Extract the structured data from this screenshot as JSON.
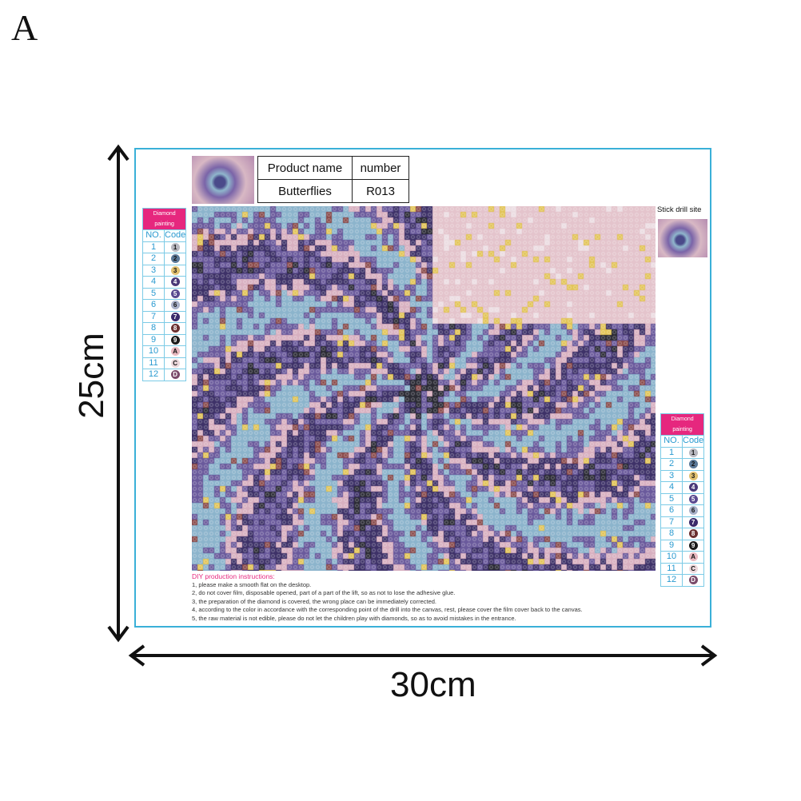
{
  "label": "A",
  "product_table": {
    "headers": [
      "Product name",
      "number"
    ],
    "values": [
      "Butterflies",
      "R013"
    ]
  },
  "stick_drill_site": "Stick drill site",
  "code_table": {
    "title": "Diamond painting",
    "headers": [
      "NO.",
      "Code"
    ],
    "rows": [
      {
        "no": "1",
        "code": "1",
        "color": "#b8b8c0"
      },
      {
        "no": "2",
        "code": "2",
        "color": "#5a7898"
      },
      {
        "no": "3",
        "code": "3",
        "color": "#e0c070"
      },
      {
        "no": "4",
        "code": "4",
        "color": "#4a3878"
      },
      {
        "no": "5",
        "code": "5",
        "color": "#5a4a90"
      },
      {
        "no": "6",
        "code": "6",
        "color": "#a8b0c8"
      },
      {
        "no": "7",
        "code": "7",
        "color": "#3a2a6a"
      },
      {
        "no": "8",
        "code": "8",
        "color": "#6a3030"
      },
      {
        "no": "9",
        "code": "9",
        "color": "#1a1a1a"
      },
      {
        "no": "10",
        "code": "A",
        "color": "#e8b8c0"
      },
      {
        "no": "11",
        "code": "C",
        "color": "#ecd8dc"
      },
      {
        "no": "12",
        "code": "D",
        "color": "#7a4a6a"
      }
    ]
  },
  "instructions": {
    "title": "DIY production instructions:",
    "items": [
      "1, please make a smooth flat on the desktop.",
      "2, do not cover film, disposable opened, part of a part of the lift, so as not to lose the adhesive glue.",
      "3, the preparation of the diamond is covered, the wrong place can be immediately corrected.",
      "4, according to the color in accordance with the corresponding point of the drill into the canvas, rest, please cover the film cover back to the canvas.",
      "5, the raw material is not edible, please do not let the children play with diamonds, so as to avoid mistakes in the entrance."
    ]
  },
  "dimensions": {
    "height": "25cm",
    "width": "30cm"
  },
  "colors": {
    "frame": "#3ab0d8",
    "accent": "#e6277e"
  }
}
